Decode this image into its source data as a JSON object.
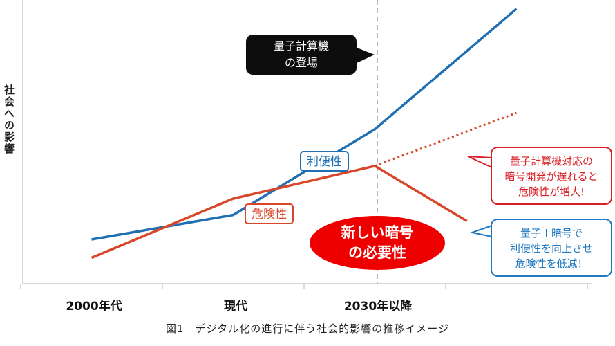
{
  "chart_data": {
    "type": "line",
    "ylabel": "社会への影響",
    "categories": [
      "2000年代",
      "現代",
      "2030年以降"
    ],
    "series": [
      {
        "name": "利便性",
        "color": "#1f6fb2",
        "x": [
          0,
          1,
          2,
          3
        ],
        "values": [
          1.0,
          2.2,
          6.4,
          12.3
        ]
      },
      {
        "name": "危険性",
        "color": "#d9472b",
        "x": [
          0,
          1,
          2,
          2.65
        ],
        "values": [
          0.1,
          3.0,
          4.6,
          1.9
        ]
      },
      {
        "name": "",
        "color": "#d9472b",
        "style": "dotted",
        "x": [
          2,
          3
        ],
        "values": [
          4.6,
          7.2
        ]
      }
    ],
    "ylim": [
      -1,
      14
    ],
    "xlim": [
      -0.5,
      3.5
    ],
    "marker_line_x": 2,
    "annotations": {
      "quantum": "量子計算機\nの登場",
      "new_crypto": "新しい暗号\nの必要性",
      "delay_warning": "量子計算機対応の\n暗号開発が遅れると\n危険性が増大!",
      "benefit_note": "量子＋暗号で\n利便性を向上させ\n危険性を低減！"
    }
  },
  "caption": "図1　デジタル化の進行に伴う社会的影響の推移イメージ",
  "colors": {
    "blue": "#1f6fb2",
    "red": "#d9472b",
    "callout_red": "#d91f26",
    "callout_blue": "#1f78c1"
  }
}
